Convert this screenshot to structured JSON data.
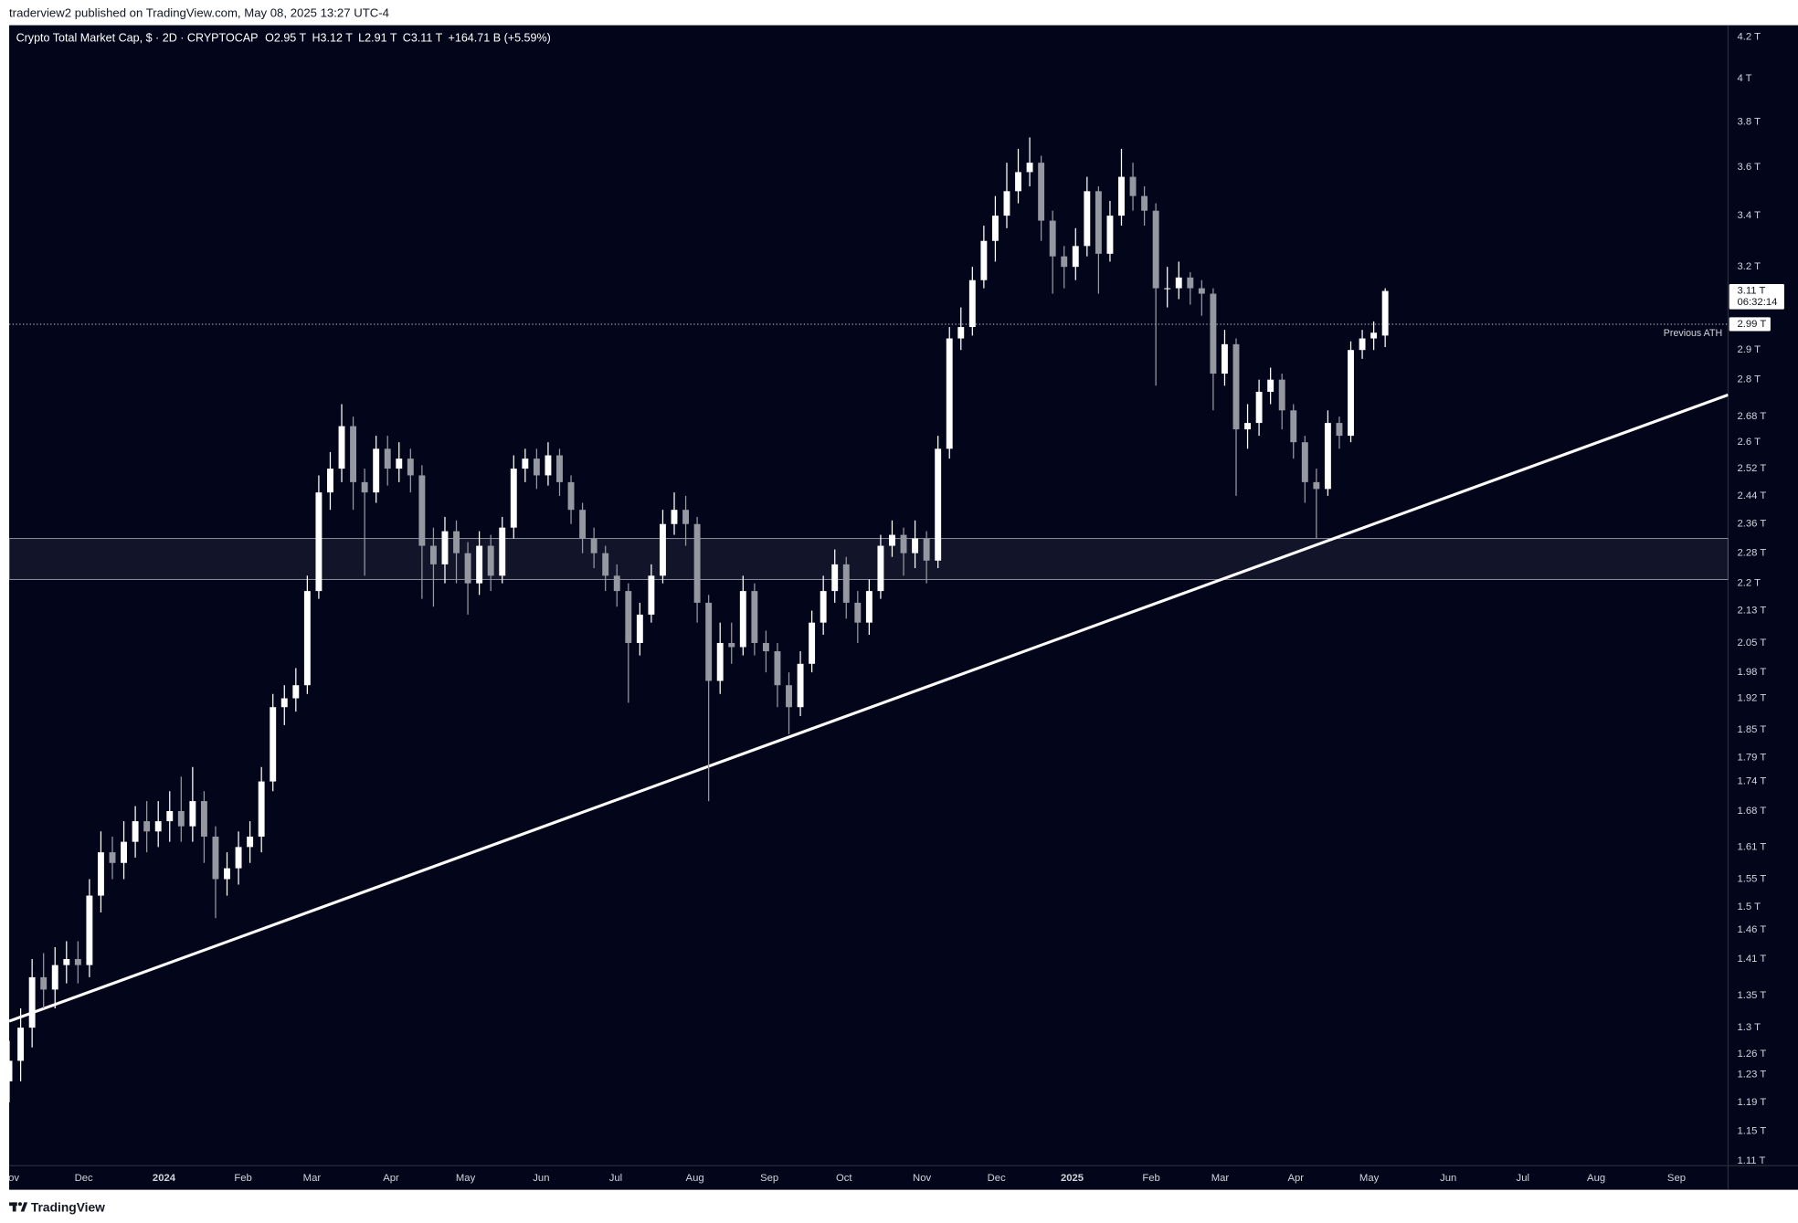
{
  "header": "traderview2 published on TradingView.com, May 08, 2025 13:27 UTC-4",
  "footer": "TradingView",
  "chart_data": {
    "type": "candlestick",
    "title": "Crypto Total Market Cap, $ · 2D · CRYPTOCAP",
    "ohlc_legend": [
      {
        "key": "O",
        "text": "2.95 T"
      },
      {
        "key": "H",
        "text": "3.12 T"
      },
      {
        "key": "L",
        "text": "2.91 T"
      },
      {
        "key": "C",
        "text": "3.11 T"
      }
    ],
    "change": "+164.71 B (+5.59%)",
    "open": [
      1.22,
      1.25,
      1.3,
      1.38,
      1.36,
      1.4,
      1.41,
      1.4,
      1.52,
      1.6,
      1.58,
      1.62,
      1.66,
      1.64,
      1.66,
      1.68,
      1.65,
      1.7,
      1.63,
      1.55,
      1.57,
      1.61,
      1.63,
      1.74,
      1.9,
      1.92,
      1.95,
      2.18,
      2.45,
      2.52,
      2.65,
      2.48,
      2.45,
      2.58,
      2.52,
      2.55,
      2.5,
      2.3,
      2.25,
      2.34,
      2.28,
      2.2,
      2.3,
      2.22,
      2.35,
      2.52,
      2.55,
      2.5,
      2.56,
      2.48,
      2.4,
      2.32,
      2.28,
      2.22,
      2.18,
      2.05,
      2.12,
      2.22,
      2.36,
      2.4,
      2.36,
      2.15,
      1.96,
      2.05,
      2.04,
      2.18,
      2.05,
      2.03,
      1.95,
      1.9,
      2.0,
      2.1,
      2.18,
      2.25,
      2.15,
      2.1,
      2.18,
      2.3,
      2.33,
      2.28,
      2.32,
      2.26,
      2.58,
      2.94,
      2.98,
      3.15,
      3.3,
      3.4,
      3.5,
      3.58,
      3.62,
      3.38,
      3.24,
      3.2,
      3.28,
      3.5,
      3.25,
      3.4,
      3.56,
      3.48,
      3.42,
      3.12,
      3.12,
      3.16,
      3.12,
      3.1,
      2.82,
      2.92,
      2.64,
      2.66,
      2.76,
      2.8,
      2.7,
      2.6,
      2.48,
      2.46,
      2.66,
      2.62,
      2.9,
      2.94,
      2.95
    ],
    "high": [
      1.28,
      1.33,
      1.41,
      1.42,
      1.43,
      1.44,
      1.44,
      1.55,
      1.64,
      1.63,
      1.66,
      1.69,
      1.7,
      1.7,
      1.72,
      1.75,
      1.77,
      1.72,
      1.65,
      1.6,
      1.64,
      1.66,
      1.77,
      1.93,
      1.95,
      1.99,
      2.22,
      2.5,
      2.57,
      2.72,
      2.68,
      2.52,
      2.62,
      2.62,
      2.6,
      2.58,
      2.53,
      2.35,
      2.38,
      2.37,
      2.31,
      2.34,
      2.33,
      2.38,
      2.56,
      2.58,
      2.58,
      2.6,
      2.58,
      2.5,
      2.42,
      2.35,
      2.3,
      2.25,
      2.2,
      2.15,
      2.25,
      2.4,
      2.45,
      2.44,
      2.38,
      2.17,
      2.1,
      2.1,
      2.22,
      2.2,
      2.08,
      2.05,
      1.98,
      2.03,
      2.13,
      2.22,
      2.29,
      2.27,
      2.18,
      2.21,
      2.33,
      2.37,
      2.35,
      2.37,
      2.34,
      2.62,
      2.98,
      3.05,
      3.2,
      3.36,
      3.48,
      3.62,
      3.68,
      3.73,
      3.65,
      3.42,
      3.28,
      3.35,
      3.56,
      3.52,
      3.46,
      3.68,
      3.62,
      3.52,
      3.45,
      3.2,
      3.22,
      3.18,
      3.15,
      3.12,
      2.97,
      2.94,
      2.72,
      2.8,
      2.84,
      2.82,
      2.72,
      2.62,
      2.52,
      2.7,
      2.68,
      2.93,
      2.97,
      3.0,
      3.12
    ],
    "low": [
      1.19,
      1.22,
      1.27,
      1.33,
      1.33,
      1.37,
      1.37,
      1.38,
      1.49,
      1.55,
      1.55,
      1.59,
      1.6,
      1.61,
      1.62,
      1.62,
      1.62,
      1.58,
      1.48,
      1.52,
      1.54,
      1.58,
      1.6,
      1.72,
      1.86,
      1.89,
      1.93,
      2.16,
      2.4,
      2.48,
      2.4,
      2.22,
      2.42,
      2.47,
      2.48,
      2.45,
      2.16,
      2.14,
      2.2,
      2.2,
      2.12,
      2.17,
      2.18,
      2.2,
      2.32,
      2.48,
      2.46,
      2.47,
      2.44,
      2.36,
      2.28,
      2.24,
      2.18,
      2.14,
      1.91,
      2.02,
      2.1,
      2.2,
      2.33,
      2.3,
      2.1,
      1.7,
      1.93,
      2.0,
      2.02,
      2.02,
      1.98,
      1.9,
      1.84,
      1.88,
      1.98,
      2.07,
      2.15,
      2.11,
      2.05,
      2.07,
      2.16,
      2.27,
      2.22,
      2.24,
      2.2,
      2.24,
      2.55,
      2.9,
      2.95,
      3.12,
      3.22,
      3.35,
      3.45,
      3.52,
      3.3,
      3.1,
      3.12,
      3.15,
      3.24,
      3.1,
      3.22,
      3.36,
      3.42,
      3.36,
      2.78,
      3.05,
      3.08,
      3.06,
      3.02,
      2.7,
      2.78,
      2.44,
      2.58,
      2.62,
      2.72,
      2.64,
      2.55,
      2.42,
      2.32,
      2.44,
      2.58,
      2.6,
      2.87,
      2.9,
      2.91
    ],
    "close": [
      1.25,
      1.3,
      1.38,
      1.36,
      1.4,
      1.41,
      1.4,
      1.52,
      1.6,
      1.58,
      1.62,
      1.66,
      1.64,
      1.66,
      1.68,
      1.65,
      1.7,
      1.63,
      1.55,
      1.57,
      1.61,
      1.63,
      1.74,
      1.9,
      1.92,
      1.95,
      2.18,
      2.45,
      2.52,
      2.65,
      2.48,
      2.45,
      2.58,
      2.52,
      2.55,
      2.5,
      2.3,
      2.25,
      2.34,
      2.28,
      2.2,
      2.3,
      2.22,
      2.35,
      2.52,
      2.55,
      2.5,
      2.56,
      2.48,
      2.4,
      2.32,
      2.28,
      2.22,
      2.18,
      2.05,
      2.12,
      2.22,
      2.36,
      2.4,
      2.36,
      2.15,
      1.96,
      2.05,
      2.04,
      2.18,
      2.05,
      2.03,
      1.95,
      1.9,
      2.0,
      2.1,
      2.18,
      2.25,
      2.15,
      2.1,
      2.18,
      2.3,
      2.33,
      2.28,
      2.32,
      2.26,
      2.58,
      2.94,
      2.98,
      3.15,
      3.3,
      3.4,
      3.5,
      3.58,
      3.62,
      3.38,
      3.24,
      3.2,
      3.28,
      3.5,
      3.25,
      3.4,
      3.56,
      3.48,
      3.42,
      3.12,
      3.12,
      3.16,
      3.12,
      3.1,
      2.82,
      2.92,
      2.64,
      2.66,
      2.76,
      2.8,
      2.7,
      2.6,
      2.48,
      2.46,
      2.66,
      2.62,
      2.9,
      2.94,
      2.96,
      3.11
    ],
    "up_color": "#ffffff",
    "down_color": "#9598a1",
    "xlim": [
      0,
      149.9
    ],
    "xticks": [
      {
        "value": 0.4,
        "label": "ov"
      },
      {
        "value": 6.5,
        "label": "Dec"
      },
      {
        "value": 13.5,
        "label": "2024"
      },
      {
        "value": 20.4,
        "label": "Feb"
      },
      {
        "value": 26.4,
        "label": "Mar"
      },
      {
        "value": 33.3,
        "label": "Apr"
      },
      {
        "value": 39.8,
        "label": "May"
      },
      {
        "value": 46.4,
        "label": "Jun"
      },
      {
        "value": 52.9,
        "label": "Jul"
      },
      {
        "value": 59.8,
        "label": "Aug"
      },
      {
        "value": 66.3,
        "label": "Sep"
      },
      {
        "value": 72.8,
        "label": "Oct"
      },
      {
        "value": 79.6,
        "label": "Nov"
      },
      {
        "value": 86.1,
        "label": "Dec"
      },
      {
        "value": 92.7,
        "label": "2025"
      },
      {
        "value": 99.6,
        "label": "Feb"
      },
      {
        "value": 105.6,
        "label": "Mar"
      },
      {
        "value": 112.2,
        "label": "Apr"
      },
      {
        "value": 118.6,
        "label": "May"
      },
      {
        "value": 125.5,
        "label": "Jun"
      },
      {
        "value": 132,
        "label": "Jul"
      },
      {
        "value": 138.4,
        "label": "Aug"
      },
      {
        "value": 145.4,
        "label": "Sep"
      }
    ],
    "ylim": [
      1.104,
      4.26
    ],
    "log_scale": true,
    "grid": false,
    "yticks": [
      {
        "value": 4.2,
        "label": "4.2 T"
      },
      {
        "value": 4,
        "label": "4 T"
      },
      {
        "value": 3.8,
        "label": "3.8 T"
      },
      {
        "value": 3.6,
        "label": "3.6 T"
      },
      {
        "value": 3.4,
        "label": "3.4 T"
      },
      {
        "value": 3.2,
        "label": "3.2 T"
      },
      {
        "value": 2.9,
        "label": "2.9 T"
      },
      {
        "value": 2.8,
        "label": "2.8 T"
      },
      {
        "value": 2.68,
        "label": "2.68 T"
      },
      {
        "value": 2.6,
        "label": "2.6 T"
      },
      {
        "value": 2.52,
        "label": "2.52 T"
      },
      {
        "value": 2.44,
        "label": "2.44 T"
      },
      {
        "value": 2.36,
        "label": "2.36 T"
      },
      {
        "value": 2.28,
        "label": "2.28 T"
      },
      {
        "value": 2.2,
        "label": "2.2 T"
      },
      {
        "value": 2.13,
        "label": "2.13 T"
      },
      {
        "value": 2.05,
        "label": "2.05 T"
      },
      {
        "value": 1.98,
        "label": "1.98 T"
      },
      {
        "value": 1.92,
        "label": "1.92 T"
      },
      {
        "value": 1.85,
        "label": "1.85 T"
      },
      {
        "value": 1.79,
        "label": "1.79 T"
      },
      {
        "value": 1.74,
        "label": "1.74 T"
      },
      {
        "value": 1.68,
        "label": "1.68 T"
      },
      {
        "value": 1.61,
        "label": "1.61 T"
      },
      {
        "value": 1.55,
        "label": "1.55 T"
      },
      {
        "value": 1.5,
        "label": "1.5 T"
      },
      {
        "value": 1.46,
        "label": "1.46 T"
      },
      {
        "value": 1.41,
        "label": "1.41 T"
      },
      {
        "value": 1.35,
        "label": "1.35 T"
      },
      {
        "value": 1.3,
        "label": "1.3 T"
      },
      {
        "value": 1.26,
        "label": "1.26 T"
      },
      {
        "value": 1.23,
        "label": "1.23 T"
      },
      {
        "value": 1.19,
        "label": "1.19 T"
      },
      {
        "value": 1.15,
        "label": "1.15 T"
      },
      {
        "value": 1.11,
        "label": "1.11 T"
      }
    ],
    "zone": [
      2.21,
      2.32
    ],
    "trendline": {
      "x": [
        0,
        149.9
      ],
      "y": [
        1.31,
        2.75
      ]
    },
    "ath_line": {
      "value": 2.99,
      "label": "2.99 T",
      "text": "Previous ATH"
    },
    "last_price": {
      "value": 3.11,
      "label": "3.11 T",
      "countdown": "06:32:14"
    }
  }
}
